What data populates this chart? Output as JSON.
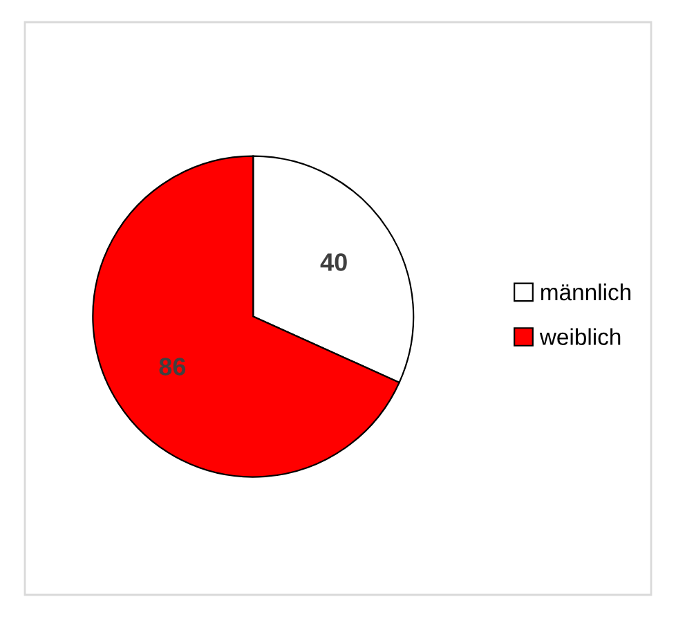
{
  "chart_data": {
    "type": "pie",
    "categories": [
      "männlich",
      "weiblich"
    ],
    "values": [
      40,
      86
    ],
    "colors": [
      "#ffffff",
      "#ff0000"
    ],
    "data_labels": true,
    "legend": "right"
  }
}
